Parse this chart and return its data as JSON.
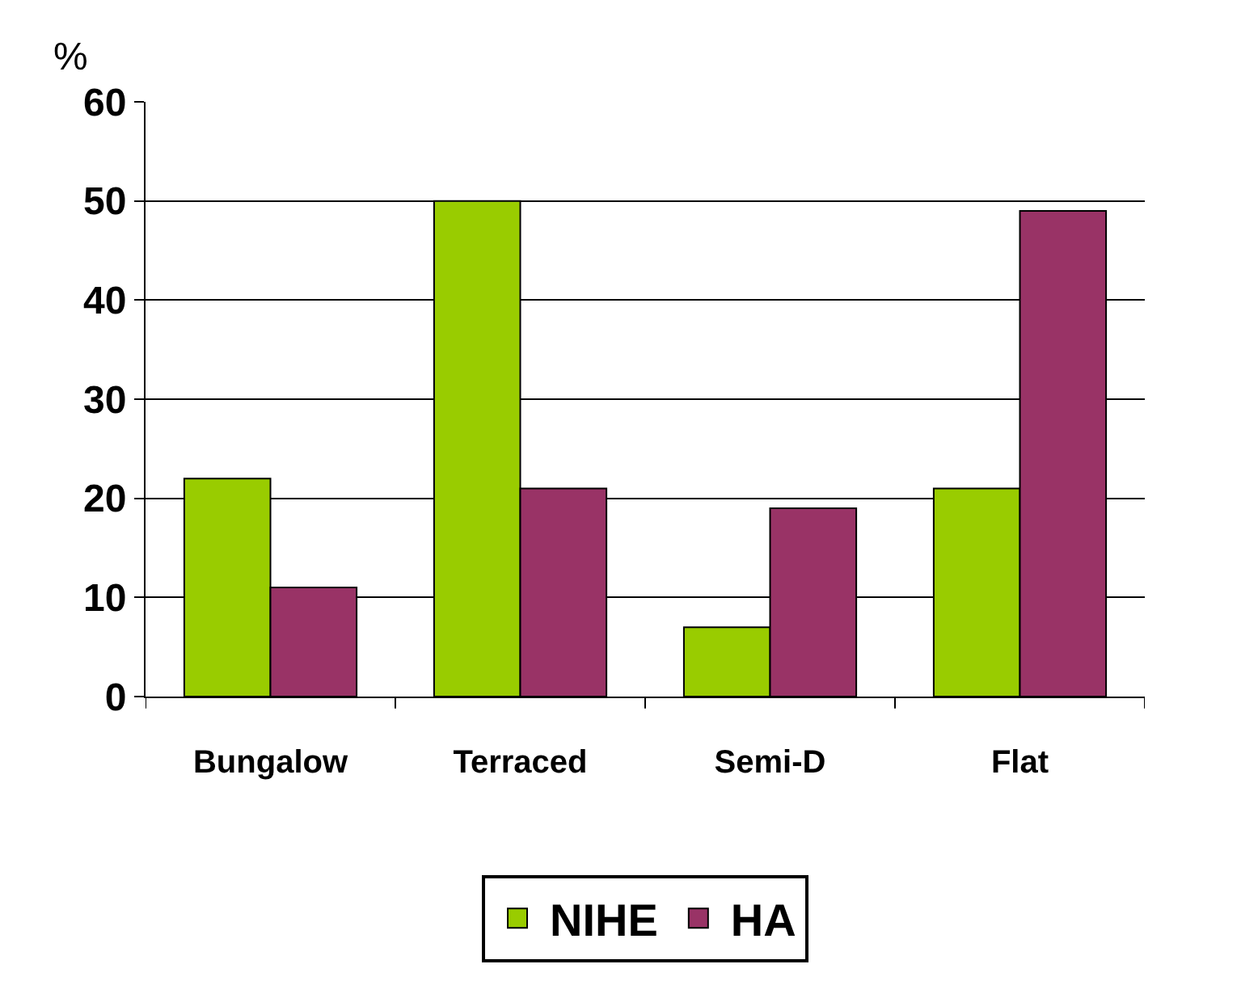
{
  "chart_data": {
    "type": "bar",
    "ylabel": "%",
    "categories": [
      "Bungalow",
      "Terraced",
      "Semi-D",
      "Flat"
    ],
    "series": [
      {
        "name": "NIHE",
        "color": "#99cc00",
        "values": [
          22,
          50,
          7,
          21
        ]
      },
      {
        "name": "HA",
        "color": "#993366",
        "values": [
          11,
          21,
          19,
          49
        ]
      }
    ],
    "ylim": [
      0,
      60
    ],
    "yticks": [
      0,
      10,
      20,
      30,
      40,
      50,
      60
    ],
    "grid": "y",
    "legend": "bottom"
  }
}
